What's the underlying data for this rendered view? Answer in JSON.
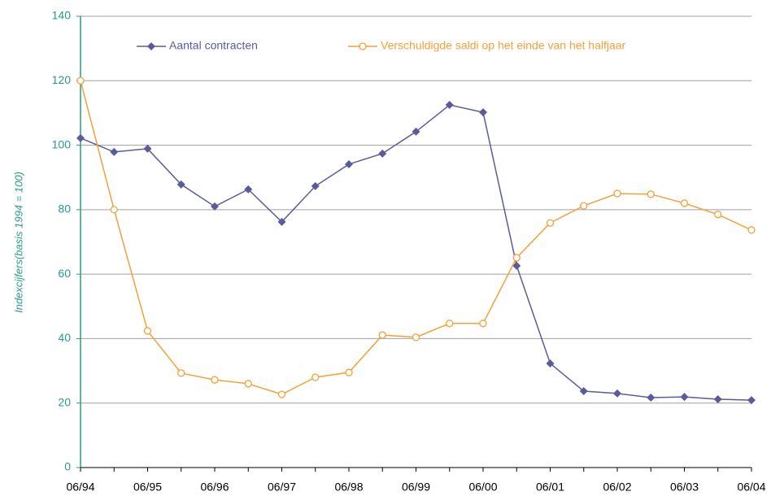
{
  "chart_data": {
    "type": "line",
    "y_label": "Indexcijfers(basis 1994 = 100)",
    "categories": [
      "06/94",
      null,
      "06/95",
      null,
      "06/96",
      null,
      "06/97",
      null,
      "06/98",
      null,
      "06/99",
      null,
      "06/00",
      null,
      "06/01",
      null,
      "06/02",
      null,
      "06/03",
      null,
      "06/04"
    ],
    "series": [
      {
        "name": "Aantal contracten",
        "color": "#5b5b9c",
        "marker": "diamond",
        "values": [
          102.2,
          97.9,
          98.9,
          87.8,
          81,
          86.3,
          76.2,
          87.3,
          94.1,
          97.4,
          104.2,
          112.5,
          110.2,
          62.6,
          32.3,
          23.7,
          23,
          21.7,
          21.9,
          21.2,
          20.9
        ]
      },
      {
        "name": "Verschuldigde saldi op het einde van het halfjaar",
        "color": "#f5a03a",
        "marker": "circle",
        "values": [
          120,
          80,
          42.4,
          29.3,
          27.2,
          26,
          22.7,
          28,
          29.5,
          41.1,
          40.4,
          44.7,
          44.7,
          65.1,
          75.9,
          81.2,
          85,
          84.8,
          82,
          78.5,
          73.7
        ]
      }
    ],
    "ylim": [
      0,
      140
    ],
    "yticks": [
      0,
      20,
      40,
      60,
      80,
      100,
      120,
      140
    ],
    "grid": true,
    "legend": "top"
  }
}
